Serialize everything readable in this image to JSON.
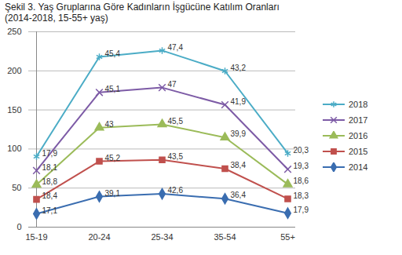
{
  "chart_data": {
    "type": "line",
    "title": "Şekil 3. Yaş Gruplarına Göre Kadınların İşgücüne Katılım Oranları",
    "subtitle": "(2014-2018, 15-55+ yaş)",
    "categories": [
      "15-19",
      "20-24",
      "25-34",
      "35-54",
      "55+"
    ],
    "stacked": true,
    "data_labels": true,
    "grid": true,
    "legend": "right",
    "ylim": [
      0,
      250
    ],
    "yticks": [
      0,
      50,
      100,
      150,
      200,
      250
    ],
    "series": [
      {
        "name": "2014",
        "color": "#3a6db0",
        "marker": "diamond",
        "values": [
          17.1,
          39.1,
          42.6,
          36.4,
          17.9
        ],
        "value_labels": [
          "17,1",
          "39,1",
          "42,6",
          "36,4",
          "17,9"
        ]
      },
      {
        "name": "2015",
        "color": "#c0504d",
        "marker": "square",
        "values": [
          18.4,
          45.2,
          43.5,
          38.4,
          18.3
        ],
        "value_labels": [
          "18,4",
          "45,2",
          "43,5",
          "38,4",
          "18,3"
        ]
      },
      {
        "name": "2016",
        "color": "#9bbb59",
        "marker": "triangle",
        "values": [
          18.8,
          43,
          45.5,
          39.9,
          18.6
        ],
        "value_labels": [
          "18,8",
          "43",
          "45,5",
          "39,9",
          "18,6"
        ]
      },
      {
        "name": "2017",
        "color": "#7d5ba6",
        "marker": "times",
        "values": [
          18.1,
          45.1,
          47,
          41.9,
          19.3
        ],
        "value_labels": [
          "18,1",
          "45,1",
          "47",
          "41,9",
          "19,3"
        ]
      },
      {
        "name": "2018",
        "color": "#4bacc6",
        "marker": "asterisk",
        "values": [
          17.9,
          45.4,
          47.4,
          43.2,
          20.3
        ],
        "value_labels": [
          "17,9",
          "45,4",
          "47,4",
          "43,2",
          "20,3"
        ]
      }
    ]
  }
}
